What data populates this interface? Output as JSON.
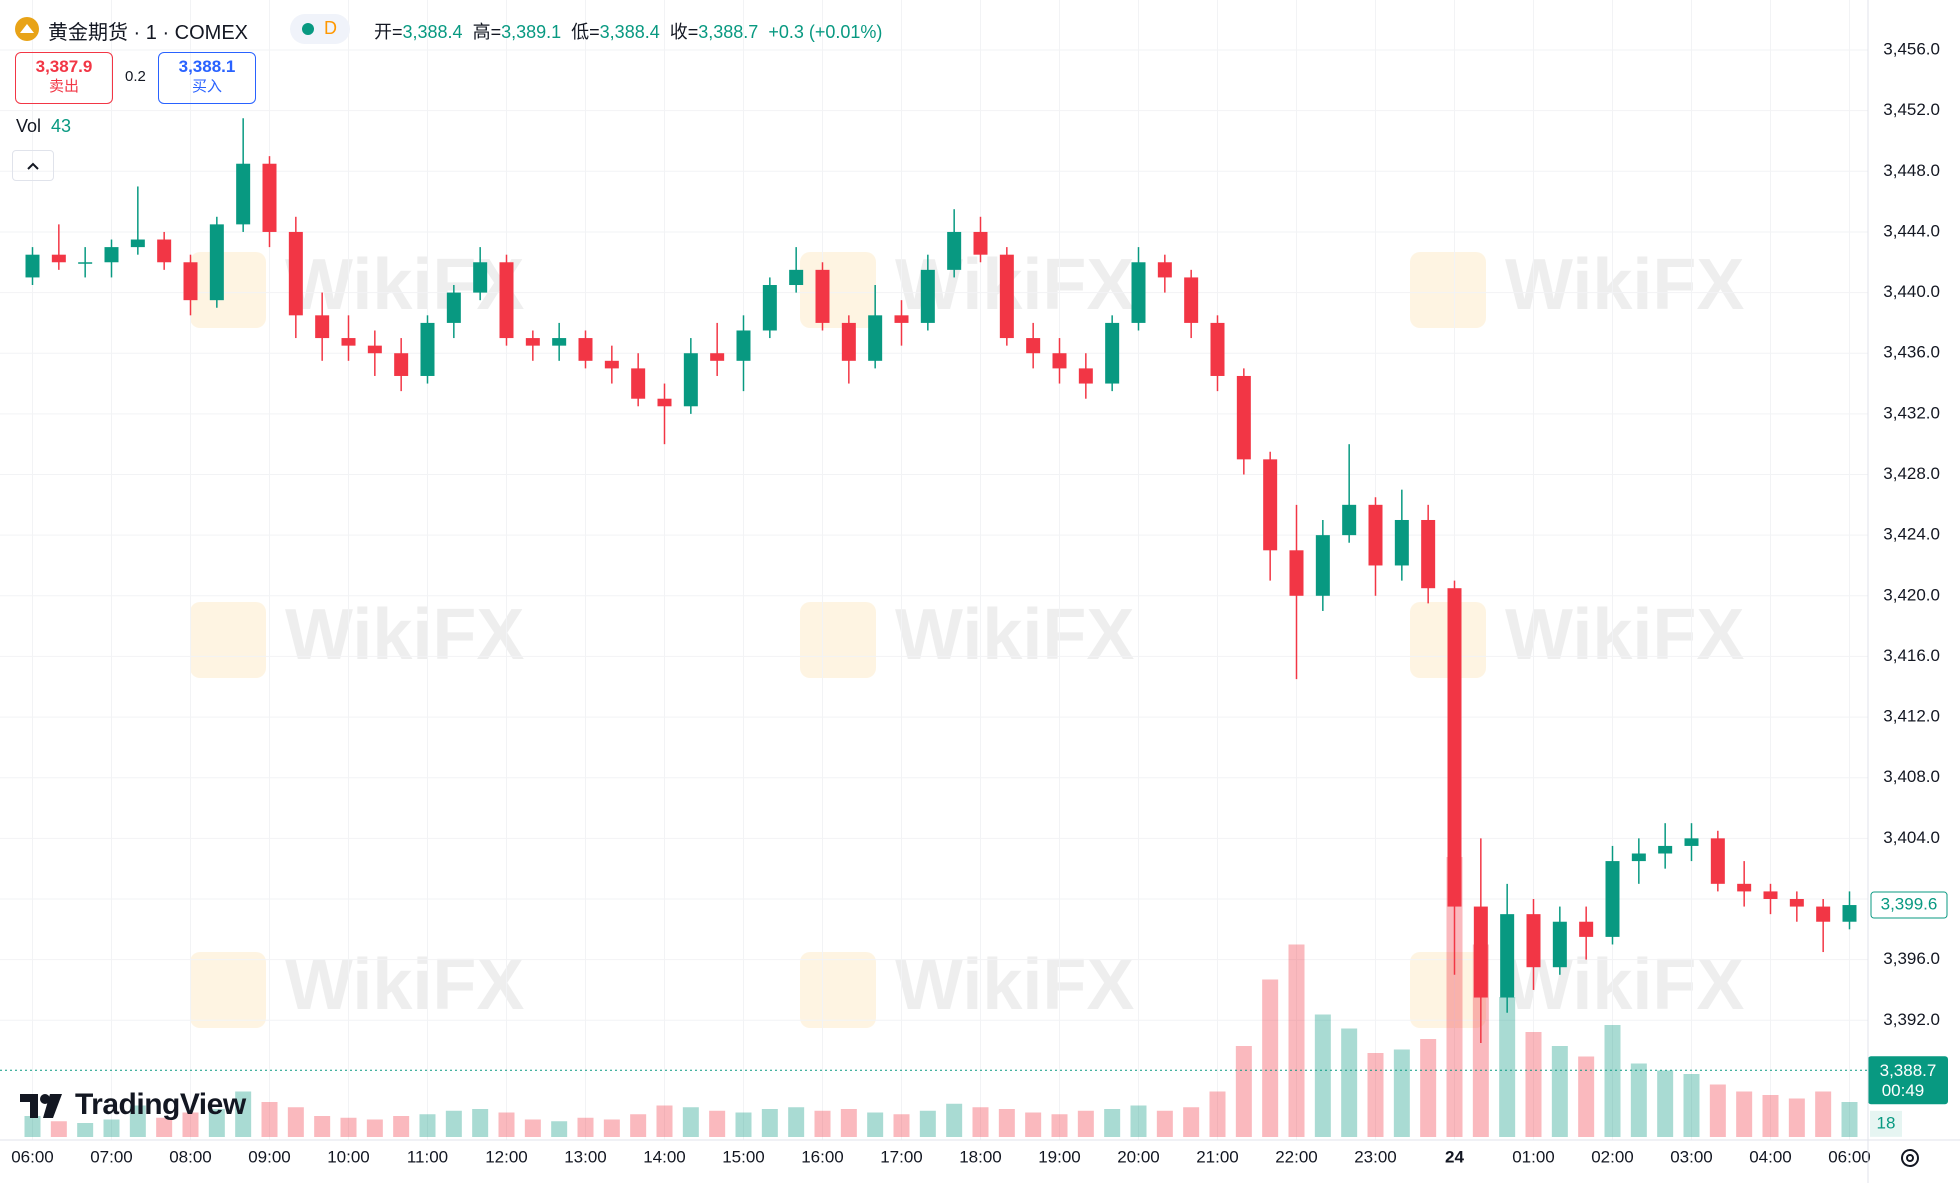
{
  "header": {
    "title": "黄金期货 · 1 · COMEX",
    "badge": "D",
    "ohlc": [
      {
        "key": "开=",
        "value": "3,388.4"
      },
      {
        "key": "高=",
        "value": "3,389.1"
      },
      {
        "key": "低=",
        "value": "3,388.4"
      },
      {
        "key": "收=",
        "value": "3,388.7"
      }
    ],
    "change": "+0.3 (+0.01%)",
    "sell": {
      "price": "3,387.9",
      "label": "卖出"
    },
    "spread": "0.2",
    "buy": {
      "price": "3,388.1",
      "label": "买入"
    },
    "volume": {
      "label": "Vol",
      "value": "43"
    },
    "logo": "TradingView",
    "watermark": "WikiFX"
  },
  "chart_data": {
    "type": "candlestick",
    "categories": [
      "06:00",
      null,
      null,
      "07:00",
      null,
      null,
      "08:00",
      null,
      null,
      "09:00",
      null,
      null,
      "10:00",
      null,
      null,
      "11:00",
      null,
      null,
      "12:00",
      null,
      null,
      "13:00",
      null,
      null,
      "14:00",
      null,
      null,
      "15:00",
      null,
      null,
      "16:00",
      null,
      null,
      "17:00",
      null,
      null,
      "18:00",
      null,
      null,
      "19:00",
      null,
      null,
      "20:00",
      null,
      null,
      "21:00",
      null,
      null,
      "22:00",
      null,
      null,
      "23:00",
      null,
      null,
      "24",
      null,
      null,
      "01:00",
      null,
      null,
      "02:00",
      null,
      null,
      "03:00",
      null,
      null,
      "04:00",
      null,
      null,
      "06:00"
    ],
    "open": [
      3441.0,
      3442.5,
      3442.0,
      3442.0,
      3443.0,
      3443.5,
      3442.0,
      3439.5,
      3444.5,
      3448.5,
      3444.0,
      3438.5,
      3437.0,
      3436.5,
      3436.0,
      3434.5,
      3438.0,
      3440.0,
      3442.0,
      3437.0,
      3436.5,
      3437.0,
      3435.5,
      3435.0,
      3433.0,
      3432.5,
      3436.0,
      3435.5,
      3437.5,
      3440.5,
      3441.5,
      3438.0,
      3435.5,
      3438.5,
      3438.0,
      3441.5,
      3444.0,
      3442.5,
      3437.0,
      3436.0,
      3435.0,
      3434.0,
      3438.0,
      3442.0,
      3441.0,
      3438.0,
      3434.5,
      3429.0,
      3423.0,
      3420.0,
      3424.0,
      3426.0,
      3422.0,
      3425.0,
      3420.5,
      3399.5,
      3393.5,
      3399.0,
      3395.5,
      3398.5,
      3397.5,
      3402.5,
      3403.0,
      3403.5,
      3404.0,
      3401.0,
      3400.5,
      3400.0,
      3399.5,
      3398.5
    ],
    "high": [
      3443.0,
      3444.5,
      3443.0,
      3443.5,
      3447.0,
      3444.0,
      3442.5,
      3445.0,
      3451.5,
      3449.0,
      3445.0,
      3440.0,
      3438.5,
      3437.5,
      3437.0,
      3438.5,
      3440.5,
      3443.0,
      3442.5,
      3437.5,
      3438.0,
      3437.5,
      3436.5,
      3436.0,
      3434.0,
      3437.0,
      3438.0,
      3438.5,
      3441.0,
      3443.0,
      3442.0,
      3438.5,
      3440.5,
      3439.5,
      3442.5,
      3445.5,
      3445.0,
      3443.0,
      3438.0,
      3437.0,
      3436.0,
      3438.5,
      3443.0,
      3442.5,
      3441.5,
      3438.5,
      3435.0,
      3429.5,
      3426.0,
      3425.0,
      3430.0,
      3426.5,
      3427.0,
      3426.0,
      3421.0,
      3404.0,
      3401.0,
      3400.0,
      3399.5,
      3399.5,
      3403.5,
      3404.0,
      3405.0,
      3405.0,
      3404.5,
      3402.5,
      3401.0,
      3400.5,
      3400.0,
      3400.5
    ],
    "low": [
      3440.5,
      3441.5,
      3441.0,
      3441.0,
      3442.5,
      3441.5,
      3438.5,
      3439.0,
      3444.0,
      3443.0,
      3437.0,
      3435.5,
      3435.5,
      3434.5,
      3433.5,
      3434.0,
      3437.0,
      3439.5,
      3436.5,
      3435.5,
      3435.5,
      3435.0,
      3434.0,
      3432.5,
      3430.0,
      3432.0,
      3434.5,
      3433.5,
      3437.0,
      3440.0,
      3437.5,
      3434.0,
      3435.0,
      3436.5,
      3437.5,
      3441.0,
      3442.0,
      3436.5,
      3435.0,
      3434.0,
      3433.0,
      3433.5,
      3437.5,
      3440.0,
      3437.0,
      3433.5,
      3428.0,
      3421.0,
      3414.5,
      3419.0,
      3423.5,
      3420.0,
      3421.0,
      3419.5,
      3395.0,
      3390.5,
      3392.5,
      3394.0,
      3395.0,
      3396.0,
      3397.0,
      3401.0,
      3402.0,
      3402.5,
      3400.5,
      3399.5,
      3399.0,
      3398.5,
      3396.5,
      3398.0
    ],
    "close": [
      3442.5,
      3442.0,
      3442.0,
      3443.0,
      3443.5,
      3442.0,
      3439.5,
      3444.5,
      3448.5,
      3444.0,
      3438.5,
      3437.0,
      3436.5,
      3436.0,
      3434.5,
      3438.0,
      3440.0,
      3442.0,
      3437.0,
      3436.5,
      3437.0,
      3435.5,
      3435.0,
      3433.0,
      3432.5,
      3436.0,
      3435.5,
      3437.5,
      3440.5,
      3441.5,
      3438.0,
      3435.5,
      3438.5,
      3438.0,
      3441.5,
      3444.0,
      3442.5,
      3437.0,
      3436.0,
      3435.0,
      3434.0,
      3438.0,
      3442.0,
      3441.0,
      3438.0,
      3434.5,
      3429.0,
      3423.0,
      3420.0,
      3424.0,
      3426.0,
      3422.0,
      3425.0,
      3420.5,
      3399.5,
      3393.5,
      3399.0,
      3395.5,
      3398.5,
      3397.5,
      3402.5,
      3403.0,
      3403.5,
      3404.0,
      3401.0,
      3400.5,
      3400.0,
      3399.5,
      3398.5,
      3399.6
    ],
    "volume": [
      120,
      90,
      80,
      100,
      180,
      110,
      140,
      160,
      260,
      200,
      170,
      120,
      110,
      100,
      120,
      130,
      150,
      160,
      140,
      100,
      90,
      110,
      100,
      130,
      180,
      170,
      150,
      140,
      160,
      170,
      150,
      160,
      140,
      130,
      150,
      190,
      170,
      160,
      140,
      130,
      150,
      160,
      180,
      150,
      170,
      260,
      520,
      900,
      1100,
      700,
      620,
      480,
      500,
      560,
      1600,
      1100,
      800,
      600,
      520,
      460,
      640,
      420,
      380,
      360,
      300,
      260,
      240,
      220,
      260,
      200
    ],
    "up_color": "#089981",
    "down_color": "#f23645",
    "ylim": [
      3384.3,
      3459.3
    ],
    "yticks": [
      {
        "value": 3392,
        "label": "3,392.0"
      },
      {
        "value": 3396,
        "label": "3,396.0"
      },
      {
        "value": 3400,
        "label": "3,400.0"
      },
      {
        "value": 3404,
        "label": "3,404.0"
      },
      {
        "value": 3408,
        "label": "3,408.0"
      },
      {
        "value": 3412,
        "label": "3,412.0"
      },
      {
        "value": 3416,
        "label": "3,416.0"
      },
      {
        "value": 3420,
        "label": "3,420.0"
      },
      {
        "value": 3424,
        "label": "3,424.0"
      },
      {
        "value": 3428,
        "label": "3,428.0"
      },
      {
        "value": 3432,
        "label": "3,432.0"
      },
      {
        "value": 3436,
        "label": "3,436.0"
      },
      {
        "value": 3440,
        "label": "3,440.0"
      },
      {
        "value": 3444,
        "label": "3,444.0"
      },
      {
        "value": 3448,
        "label": "3,448.0"
      },
      {
        "value": 3452,
        "label": "3,452.0"
      },
      {
        "value": 3456,
        "label": "3,456.0"
      }
    ],
    "grid": true,
    "price_marker": {
      "value": 3399.6,
      "label": "3,399.6"
    },
    "last_price": {
      "value": 3388.7,
      "label": "3,388.7",
      "countdown": "00:49"
    },
    "volume_marker": {
      "value": 18,
      "label": "18"
    }
  }
}
